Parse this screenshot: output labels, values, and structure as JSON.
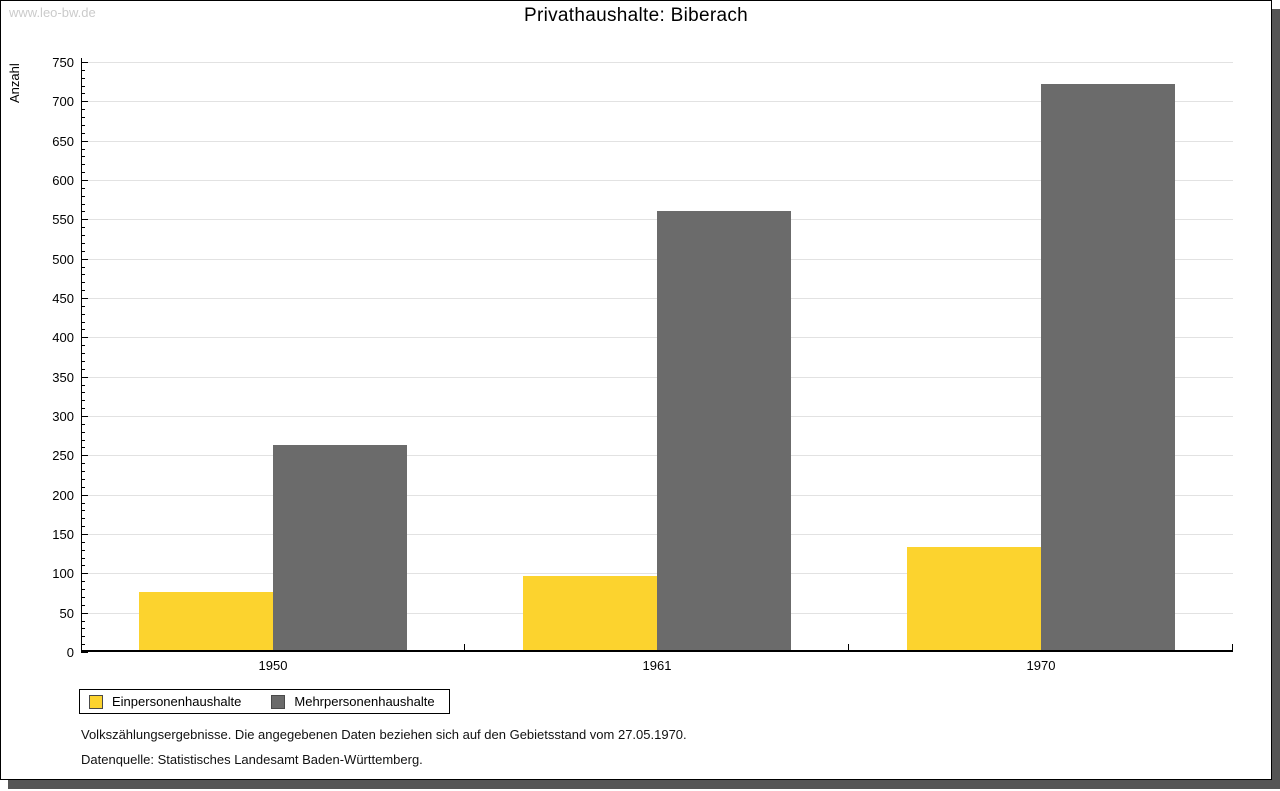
{
  "watermark": "www.leo-bw.de",
  "colors": {
    "bar_yellow": "#fcd32e",
    "bar_gray": "#6b6b6b",
    "gridline": "#e2e2e2",
    "axis": "#000000",
    "watermark_gray": "#cbcbcb",
    "shadow_gray": "#555555"
  },
  "chart_data": {
    "type": "bar",
    "title": "Privathaushalte: Biberach",
    "xlabel": "",
    "ylabel": "Anzahl",
    "categories": [
      "1950",
      "1961",
      "1970"
    ],
    "series": [
      {
        "name": "Einpersonenhaushalte",
        "color": "#fcd32e",
        "values": [
          76,
          97,
          133
        ]
      },
      {
        "name": "Mehrpersonenhaushalte",
        "color": "#6b6b6b",
        "values": [
          263,
          561,
          722
        ]
      }
    ],
    "ylim": [
      0,
      750
    ],
    "ytick_major": 50,
    "ytick_minor": 10,
    "grid": "horizontal-major",
    "legend_position": "bottom-left"
  },
  "footnotes": {
    "line1": "Volkszählungsergebnisse. Die angegebenen Daten beziehen sich auf den Gebietsstand vom 27.05.1970.",
    "line2": "Datenquelle: Statistisches Landesamt Baden-Württemberg."
  }
}
